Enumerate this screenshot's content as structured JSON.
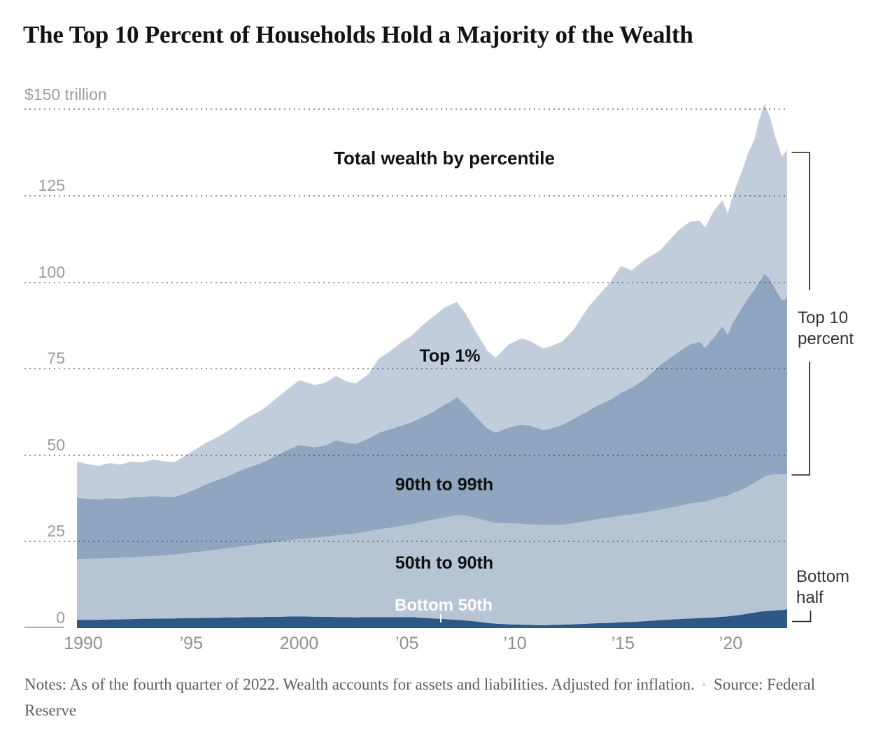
{
  "title": "The Top 10 Percent of Households Hold a Majority of the Wealth",
  "annotations": {
    "chart_label": "Total wealth by percentile",
    "top1_label": "Top 1%",
    "p9099_label": "90th to 99th",
    "p5090_label": "50th to 90th",
    "bottom50_label": "Bottom 50th",
    "top10_bracket_line1": "Top 10",
    "top10_bracket_line2": "percent",
    "bottom_half_line1": "Bottom",
    "bottom_half_line2": "half"
  },
  "axes": {
    "y_top_label": "$150 trillion",
    "y_ticks": [
      {
        "label": "125",
        "value": 125
      },
      {
        "label": "100",
        "value": 100
      },
      {
        "label": "75",
        "value": 75
      },
      {
        "label": "50",
        "value": 50
      },
      {
        "label": "25",
        "value": 25
      },
      {
        "label": "0",
        "value": 0
      }
    ],
    "y_gridline_values": [
      150,
      125,
      100,
      75,
      50,
      25
    ],
    "x_ticks": [
      {
        "label": "1990",
        "year": 1990
      },
      {
        "label": "’95",
        "year": 1995
      },
      {
        "label": "2000",
        "year": 2000
      },
      {
        "label": "’05",
        "year": 2005
      },
      {
        "label": "’10",
        "year": 2010
      },
      {
        "label": "’15",
        "year": 2015
      },
      {
        "label": "’20",
        "year": 2020
      }
    ]
  },
  "notes": {
    "body": "Notes: As of the fourth quarter of 2022. Wealth accounts for assets and liabilities. Adjusted for inflation.",
    "bullet": "•",
    "source": "Source: Federal Reserve"
  },
  "colors": {
    "top_1": "#c1cdda",
    "p90_99": "#90a6c0",
    "p50_90": "#b6c4d4",
    "bottom_50": "#2d5787",
    "grid": "#a9a9a9",
    "bracket": "#1a1a1a"
  },
  "chart_data": {
    "type": "area",
    "stacked": true,
    "title": "Total wealth by percentile",
    "units": "trillions of dollars",
    "xlim": [
      1990,
      2022.9
    ],
    "ylim": [
      0,
      155
    ],
    "x": [
      1990,
      1990.5,
      1991,
      1991.5,
      1992,
      1992.5,
      1993,
      1993.5,
      1994,
      1994.5,
      1995,
      1995.5,
      1996,
      1996.5,
      1997,
      1997.5,
      1998,
      1998.5,
      1999,
      1999.5,
      2000,
      2000.3,
      2001,
      2001.5,
      2002,
      2002.5,
      2002.9,
      2003.5,
      2004,
      2004.5,
      2005,
      2005.5,
      2006,
      2006.5,
      2007,
      2007.3,
      2007.6,
      2008,
      2008.5,
      2009,
      2009.4,
      2010,
      2010.6,
      2011,
      2011.6,
      2012,
      2012.5,
      2013,
      2013.7,
      2014,
      2014.7,
      2015.2,
      2015.7,
      2016.3,
      2017,
      2017.9,
      2018.4,
      2018.85,
      2019.1,
      2019.5,
      2019.9,
      2020.15,
      2020.4,
      2020.8,
      2021.1,
      2021.4,
      2021.6,
      2021.85,
      2022.1,
      2022.35,
      2022.55,
      2022.65,
      2022.9
    ],
    "series": [
      {
        "name": "Bottom 50th",
        "color": "#2d5787",
        "values": [
          2.4,
          2.4,
          2.4,
          2.5,
          2.5,
          2.6,
          2.7,
          2.7,
          2.8,
          2.8,
          2.9,
          2.9,
          3.0,
          3.0,
          3.1,
          3.1,
          3.2,
          3.2,
          3.3,
          3.3,
          3.4,
          3.4,
          3.3,
          3.3,
          3.2,
          3.2,
          3.1,
          3.2,
          3.2,
          3.2,
          3.2,
          3.2,
          3.0,
          2.8,
          2.6,
          2.5,
          2.4,
          2.2,
          1.9,
          1.5,
          1.3,
          1.1,
          1.0,
          0.9,
          0.8,
          0.9,
          1.0,
          1.1,
          1.3,
          1.4,
          1.5,
          1.7,
          1.8,
          2.0,
          2.3,
          2.6,
          2.8,
          2.9,
          3.0,
          3.1,
          3.3,
          3.4,
          3.6,
          3.9,
          4.2,
          4.5,
          4.7,
          4.9,
          5.0,
          5.1,
          5.2,
          5.2,
          5.4
        ]
      },
      {
        "name": "50th to 90th",
        "color": "#b6c4d4",
        "values": [
          17.6,
          17.6,
          17.7,
          17.7,
          17.8,
          17.9,
          17.9,
          18.1,
          18.2,
          18.4,
          18.7,
          19.1,
          19.3,
          19.7,
          20.0,
          20.4,
          20.7,
          21.1,
          21.4,
          21.8,
          22.1,
          22.3,
          22.8,
          23.1,
          23.6,
          23.9,
          24.2,
          24.8,
          25.4,
          25.8,
          26.3,
          26.8,
          27.7,
          28.5,
          29.3,
          29.8,
          30.3,
          30.3,
          29.9,
          29.5,
          29.1,
          29.2,
          29.2,
          29.1,
          29.0,
          28.9,
          28.9,
          29.2,
          29.7,
          30.0,
          30.5,
          30.8,
          31.0,
          31.4,
          31.9,
          32.7,
          33.2,
          33.5,
          33.6,
          34.2,
          34.7,
          34.9,
          35.4,
          36.1,
          36.8,
          37.5,
          38.1,
          38.9,
          39.3,
          39.4,
          39.2,
          39.1,
          39.1
        ]
      },
      {
        "name": "90th to 99th",
        "color": "#90a6c0",
        "values": [
          17.7,
          17.4,
          17.1,
          17.4,
          17.1,
          17.3,
          17.3,
          17.4,
          17.0,
          16.7,
          17.3,
          18.2,
          19.3,
          20.1,
          20.8,
          21.9,
          22.7,
          23.3,
          24.4,
          25.6,
          26.7,
          27.2,
          26.2,
          26.4,
          27.5,
          26.5,
          25.9,
          26.8,
          27.9,
          28.5,
          29.0,
          29.5,
          30.3,
          31.2,
          32.6,
          33.2,
          34.1,
          32.0,
          29.2,
          26.8,
          26.1,
          27.7,
          28.6,
          28.5,
          27.4,
          28.0,
          28.9,
          30.2,
          31.8,
          32.6,
          34.0,
          35.5,
          36.7,
          38.6,
          41.8,
          44.7,
          46.0,
          46.4,
          44.4,
          46.7,
          49.2,
          46.5,
          49.5,
          52.5,
          54.5,
          56.0,
          57.2,
          58.6,
          56.7,
          53.5,
          51.6,
          50.5,
          50.8
        ]
      },
      {
        "name": "Top 1%",
        "color": "#c1cdda",
        "values": [
          10.5,
          10.0,
          9.7,
          10.1,
          9.9,
          10.3,
          10.0,
          10.5,
          10.3,
          10.0,
          10.9,
          11.5,
          12.0,
          12.4,
          13.1,
          13.8,
          14.6,
          15.2,
          16.1,
          17.1,
          18.0,
          18.8,
          18.0,
          18.1,
          18.6,
          17.7,
          17.5,
          18.6,
          21.5,
          22.5,
          24.0,
          25.0,
          26.5,
          27.5,
          28.0,
          28.0,
          27.5,
          26.5,
          24.5,
          22.5,
          21.7,
          24.0,
          25.0,
          24.5,
          23.6,
          23.8,
          24.2,
          25.7,
          30.1,
          31.0,
          34.0,
          36.7,
          33.9,
          34.5,
          33.1,
          35.2,
          35.5,
          35.0,
          34.8,
          36.6,
          36.5,
          35.1,
          36.8,
          39.5,
          41.9,
          43.5,
          46.9,
          49.1,
          46.9,
          43.9,
          42.5,
          41.4,
          43.0
        ]
      }
    ],
    "legend_position": "labels-inside-areas",
    "grid": "dotted-horizontal"
  }
}
